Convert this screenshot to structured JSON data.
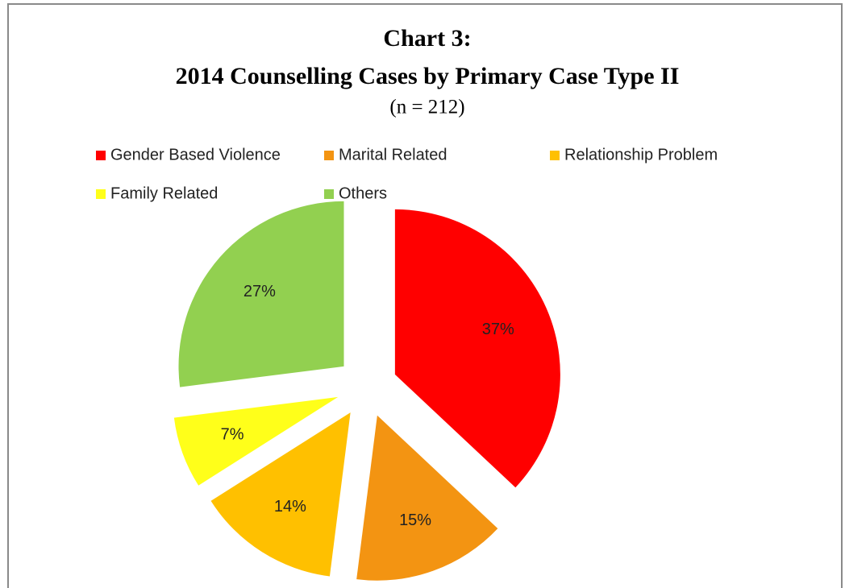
{
  "chart_data": {
    "type": "pie",
    "title": "Chart 3:",
    "subtitle": "2014 Counselling Cases by Primary Case Type II",
    "annotation": "(n = 212)",
    "categories": [
      "Gender Based Violence",
      "Marital Related",
      "Relationship Problem",
      "Family Related",
      "Others"
    ],
    "values": [
      37,
      15,
      14,
      7,
      27
    ],
    "value_labels": [
      "37%",
      "15%",
      "14%",
      "7%",
      "27%"
    ],
    "colors": [
      "#ff0000",
      "#f39412",
      "#ffc000",
      "#ffff1a",
      "#92d050"
    ],
    "legend": "top"
  }
}
